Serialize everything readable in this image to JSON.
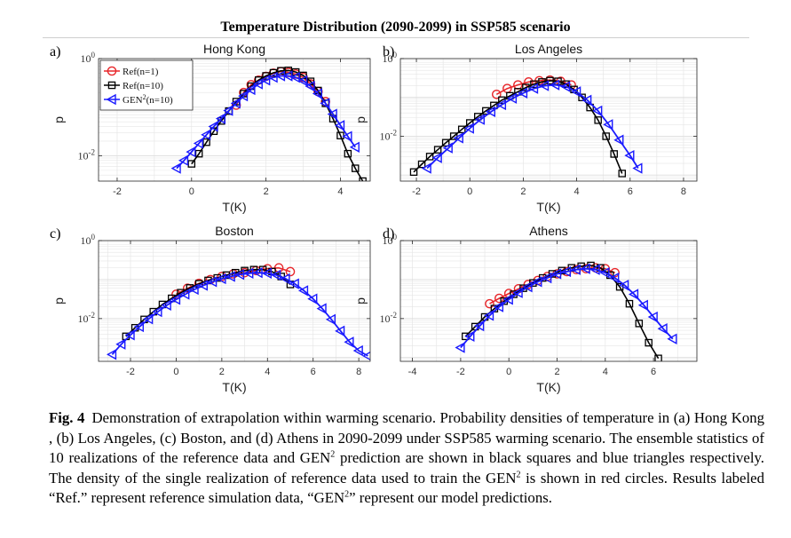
{
  "figure_title": "Temperature Distribution (2090-2099) in SSP585 scenario",
  "legend": {
    "ref1": "Ref(n=1)",
    "ref10": "Ref(n=10)",
    "gen_base": "GEN",
    "gen_sup": "2",
    "gen_tail": "(n=10)"
  },
  "colors": {
    "ref1": "#e8262a",
    "ref10": "#000000",
    "gen": "#1a1aff",
    "grid": "#e6e6e6"
  },
  "caption": {
    "fig_label": "Fig. 4",
    "text1": "Demonstration of extrapolation within warming scenario. Probability densities of temperature in (a) Hong Kong , (b) Los Angeles, (c) Boston, and (d) Athens in 2090-2099 under SSP585 warming scenario. The ensemble statistics of 10 realizations of the reference data and GEN",
    "sup1": "2",
    "text2": " prediction are shown in black squares and blue triangles respectively. The density of the single realization of reference data used to train the GEN",
    "sup2": "2",
    "text3": " is shown in red circles. Results labeled “Ref.” represent reference simulation data, “GEN",
    "sup3": "2",
    "text4": "” represent our model predictions."
  },
  "chart_data": [
    {
      "type": "line",
      "panel_label": "a)",
      "title": "Hong Kong",
      "xlabel": "T(K)",
      "ylabel": "p",
      "yscale": "log",
      "xlim": [
        -2.5,
        4.8
      ],
      "ylim": [
        0.003,
        1
      ],
      "xticks": [
        -2,
        0,
        2,
        4
      ],
      "ytick_labels": [
        "10^0",
        "10^-2"
      ],
      "legend_position": "top-left",
      "grid": true,
      "series": [
        {
          "name": "Ref(n=1)",
          "marker": "circle",
          "x": [
            1.2,
            1.4,
            1.6,
            1.8,
            2.0,
            2.2,
            2.4,
            2.6,
            2.8,
            3.0,
            3.2,
            3.4,
            3.6
          ],
          "y": [
            0.11,
            0.2,
            0.29,
            0.36,
            0.43,
            0.5,
            0.54,
            0.52,
            0.48,
            0.41,
            0.3,
            0.21,
            0.13
          ]
        },
        {
          "name": "Ref(n=10)",
          "marker": "square",
          "x": [
            0.0,
            0.2,
            0.4,
            0.6,
            0.8,
            1.0,
            1.2,
            1.4,
            1.6,
            1.8,
            2.0,
            2.2,
            2.4,
            2.6,
            2.8,
            3.0,
            3.2,
            3.4,
            3.6,
            3.8,
            4.0,
            4.2,
            4.4,
            4.6
          ],
          "y": [
            0.0068,
            0.011,
            0.019,
            0.032,
            0.052,
            0.083,
            0.13,
            0.19,
            0.27,
            0.36,
            0.44,
            0.51,
            0.56,
            0.57,
            0.53,
            0.45,
            0.34,
            0.22,
            0.12,
            0.058,
            0.026,
            0.011,
            0.0055,
            0.003
          ]
        },
        {
          "name": "GEN2(n=10)",
          "marker": "triangle-left",
          "x": [
            -0.4,
            -0.2,
            0.0,
            0.2,
            0.4,
            0.6,
            0.8,
            1.0,
            1.2,
            1.4,
            1.6,
            1.8,
            2.0,
            2.2,
            2.4,
            2.6,
            2.8,
            3.0,
            3.2,
            3.4,
            3.6,
            3.8,
            4.0,
            4.2,
            4.4
          ],
          "y": [
            0.0055,
            0.008,
            0.012,
            0.018,
            0.027,
            0.04,
            0.058,
            0.085,
            0.12,
            0.17,
            0.23,
            0.3,
            0.36,
            0.41,
            0.44,
            0.44,
            0.41,
            0.35,
            0.27,
            0.19,
            0.12,
            0.072,
            0.042,
            0.025,
            0.015
          ]
        }
      ]
    },
    {
      "type": "line",
      "panel_label": "b)",
      "title": "Los Angeles",
      "xlabel": "T(K)",
      "ylabel": "p",
      "yscale": "log",
      "xlim": [
        -2.6,
        8.5
      ],
      "ylim": [
        0.0007,
        1
      ],
      "xticks": [
        -2,
        0,
        2,
        4,
        6,
        8
      ],
      "ytick_labels": [
        "10^0",
        "10^-2"
      ],
      "legend_position": "none",
      "grid": true,
      "series": [
        {
          "name": "Ref(n=1)",
          "marker": "circle",
          "x": [
            1.0,
            1.4,
            1.8,
            2.2,
            2.6,
            3.0,
            3.4,
            3.8
          ],
          "y": [
            0.12,
            0.17,
            0.21,
            0.25,
            0.27,
            0.28,
            0.26,
            0.21
          ]
        },
        {
          "name": "Ref(n=10)",
          "marker": "square",
          "x": [
            -2.1,
            -1.8,
            -1.5,
            -1.2,
            -0.9,
            -0.6,
            -0.3,
            0.0,
            0.3,
            0.6,
            0.9,
            1.2,
            1.5,
            1.8,
            2.1,
            2.4,
            2.7,
            3.0,
            3.3,
            3.6,
            3.9,
            4.2,
            4.5,
            4.8,
            5.1,
            5.4,
            5.7
          ],
          "y": [
            0.0012,
            0.0019,
            0.003,
            0.0045,
            0.0068,
            0.01,
            0.015,
            0.022,
            0.032,
            0.045,
            0.062,
            0.085,
            0.11,
            0.14,
            0.18,
            0.22,
            0.25,
            0.27,
            0.26,
            0.22,
            0.16,
            0.1,
            0.055,
            0.026,
            0.01,
            0.0035,
            0.0011
          ]
        },
        {
          "name": "GEN2(n=10)",
          "marker": "triangle-left",
          "x": [
            -1.6,
            -1.2,
            -0.8,
            -0.4,
            0.0,
            0.4,
            0.8,
            1.2,
            1.6,
            2.0,
            2.4,
            2.8,
            3.2,
            3.6,
            4.0,
            4.4,
            4.8,
            5.2,
            5.6,
            6.0,
            6.3
          ],
          "y": [
            0.0015,
            0.0028,
            0.005,
            0.009,
            0.016,
            0.027,
            0.043,
            0.065,
            0.095,
            0.13,
            0.17,
            0.2,
            0.21,
            0.19,
            0.14,
            0.085,
            0.045,
            0.02,
            0.008,
            0.0032,
            0.0015
          ]
        }
      ]
    },
    {
      "type": "line",
      "panel_label": "c)",
      "title": "Boston",
      "xlabel": "T(K)",
      "ylabel": "p",
      "yscale": "log",
      "xlim": [
        -3.4,
        8.5
      ],
      "ylim": [
        0.0008,
        1
      ],
      "xticks": [
        -2,
        0,
        2,
        4,
        6,
        8
      ],
      "ytick_labels": [
        "10^0",
        "10^-2"
      ],
      "legend_position": "none",
      "grid": true,
      "series": [
        {
          "name": "Ref(n=1)",
          "marker": "circle",
          "x": [
            0.0,
            0.5,
            1.0,
            1.5,
            2.0,
            2.5,
            3.0,
            3.5,
            4.0,
            4.5,
            5.0
          ],
          "y": [
            0.042,
            0.06,
            0.08,
            0.1,
            0.12,
            0.14,
            0.15,
            0.17,
            0.19,
            0.2,
            0.16
          ]
        },
        {
          "name": "Ref(n=10)",
          "marker": "square",
          "x": [
            -2.2,
            -1.8,
            -1.4,
            -1.0,
            -0.6,
            -0.2,
            0.2,
            0.6,
            1.0,
            1.4,
            1.8,
            2.2,
            2.6,
            3.0,
            3.4,
            3.8,
            4.2,
            4.6,
            5.0
          ],
          "y": [
            0.0035,
            0.0058,
            0.0095,
            0.015,
            0.023,
            0.033,
            0.046,
            0.061,
            0.078,
            0.095,
            0.11,
            0.13,
            0.15,
            0.17,
            0.18,
            0.18,
            0.16,
            0.12,
            0.075
          ]
        },
        {
          "name": "GEN2(n=10)",
          "marker": "triangle-left",
          "x": [
            -2.8,
            -2.4,
            -2.0,
            -1.6,
            -1.2,
            -0.8,
            -0.4,
            0.0,
            0.4,
            0.8,
            1.2,
            1.6,
            2.0,
            2.4,
            2.8,
            3.2,
            3.6,
            4.0,
            4.4,
            4.8,
            5.2,
            5.6,
            6.0,
            6.4,
            6.8,
            7.2,
            7.6,
            8.0,
            8.4
          ],
          "y": [
            0.0012,
            0.0022,
            0.0038,
            0.0062,
            0.0098,
            0.015,
            0.022,
            0.031,
            0.042,
            0.056,
            0.071,
            0.088,
            0.105,
            0.12,
            0.135,
            0.145,
            0.15,
            0.145,
            0.13,
            0.105,
            0.078,
            0.052,
            0.032,
            0.018,
            0.0095,
            0.0048,
            0.0025,
            0.0015,
            0.0011
          ]
        }
      ]
    },
    {
      "type": "line",
      "panel_label": "d)",
      "title": "Athens",
      "xlabel": "T(K)",
      "ylabel": "p",
      "yscale": "log",
      "xlim": [
        -4.5,
        7.8
      ],
      "ylim": [
        0.0008,
        1
      ],
      "xticks": [
        -4,
        -2,
        0,
        2,
        4,
        6
      ],
      "ytick_labels": [
        "10^0",
        "10^-2"
      ],
      "legend_position": "none",
      "grid": true,
      "series": [
        {
          "name": "Ref(n=1)",
          "marker": "circle",
          "x": [
            -0.8,
            -0.4,
            0.0,
            0.4,
            0.8,
            1.2,
            1.6,
            2.0,
            2.4,
            2.8,
            3.2,
            3.6,
            4.0,
            4.4
          ],
          "y": [
            0.024,
            0.033,
            0.044,
            0.058,
            0.075,
            0.095,
            0.12,
            0.14,
            0.16,
            0.18,
            0.19,
            0.2,
            0.19,
            0.15
          ]
        },
        {
          "name": "Ref(n=10)",
          "marker": "square",
          "x": [
            -1.8,
            -1.4,
            -1.0,
            -0.6,
            -0.2,
            0.2,
            0.6,
            1.0,
            1.4,
            1.8,
            2.2,
            2.6,
            3.0,
            3.4,
            3.8,
            4.2,
            4.6,
            5.0,
            5.4,
            5.8,
            6.2
          ],
          "y": [
            0.0035,
            0.0062,
            0.011,
            0.018,
            0.028,
            0.042,
            0.06,
            0.082,
            0.11,
            0.14,
            0.17,
            0.2,
            0.22,
            0.23,
            0.2,
            0.13,
            0.065,
            0.024,
            0.0075,
            0.0024,
            0.00095
          ]
        },
        {
          "name": "GEN2(n=10)",
          "marker": "triangle-left",
          "x": [
            -2.0,
            -1.6,
            -1.2,
            -0.8,
            -0.4,
            0.0,
            0.4,
            0.8,
            1.2,
            1.6,
            2.0,
            2.4,
            2.8,
            3.2,
            3.6,
            4.0,
            4.4,
            4.8,
            5.2,
            5.6,
            6.0,
            6.4,
            6.8
          ],
          "y": [
            0.0018,
            0.0035,
            0.0065,
            0.012,
            0.02,
            0.031,
            0.046,
            0.065,
            0.088,
            0.11,
            0.14,
            0.16,
            0.18,
            0.19,
            0.18,
            0.15,
            0.11,
            0.072,
            0.042,
            0.022,
            0.011,
            0.0055,
            0.003
          ]
        }
      ]
    }
  ]
}
